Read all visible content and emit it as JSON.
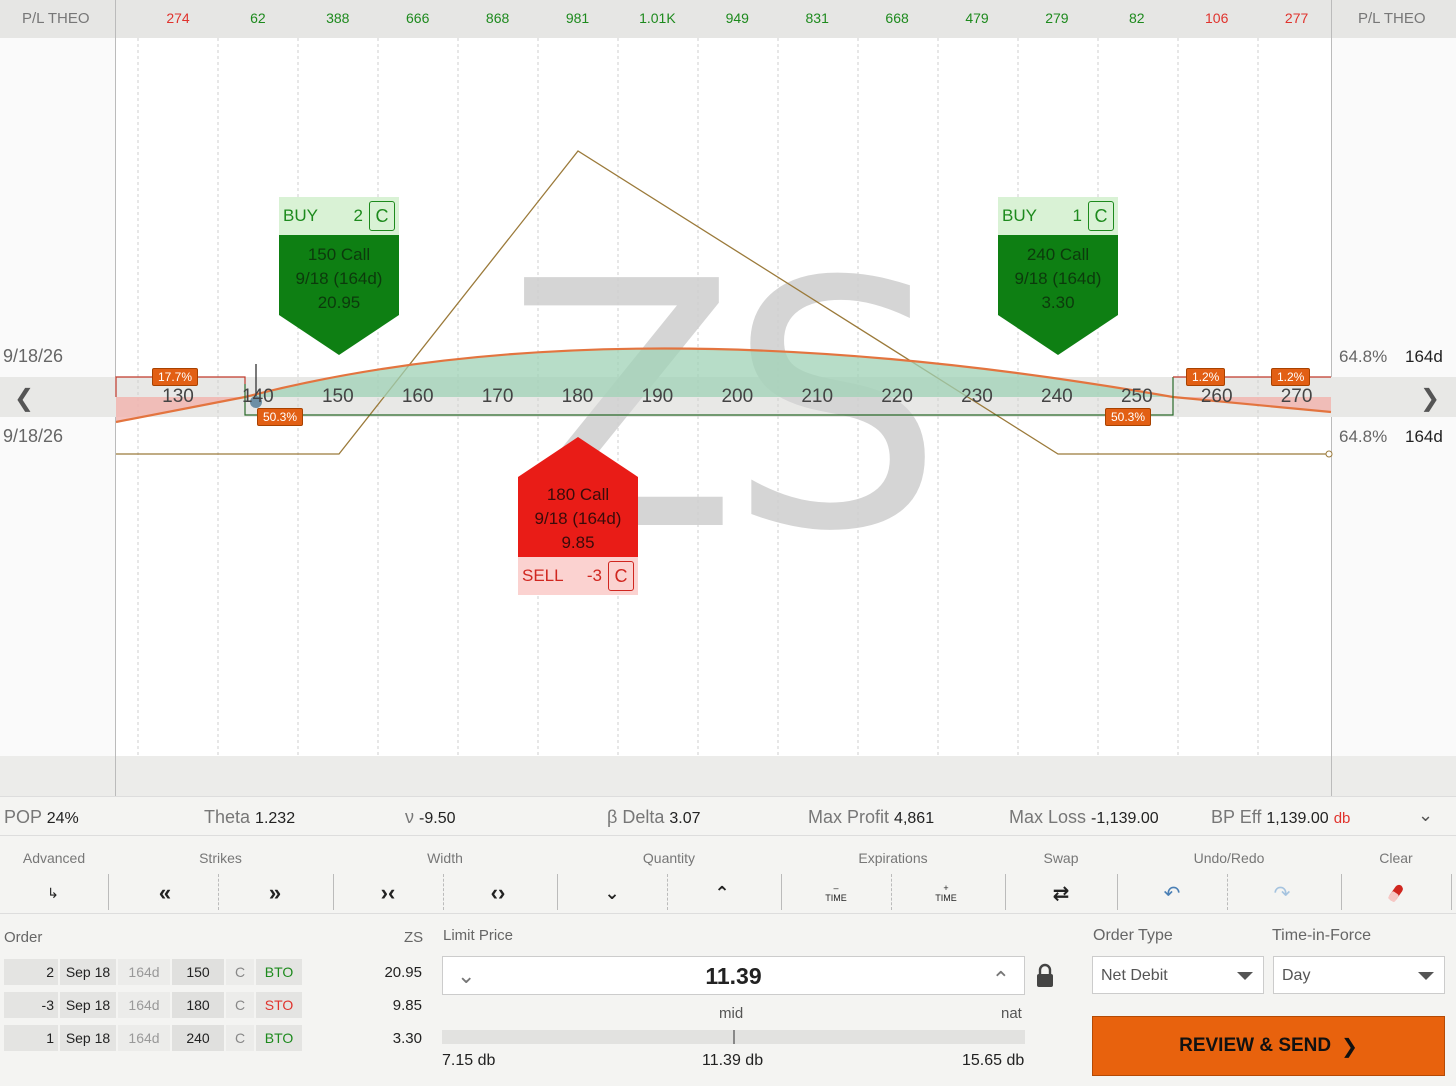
{
  "pl": {
    "label": "P/L THEO",
    "values": [
      {
        "text": "274",
        "sign": "neg"
      },
      {
        "text": "62",
        "sign": "pos"
      },
      {
        "text": "388",
        "sign": "pos"
      },
      {
        "text": "666",
        "sign": "pos"
      },
      {
        "text": "868",
        "sign": "pos"
      },
      {
        "text": "981",
        "sign": "pos"
      },
      {
        "text": "1.01K",
        "sign": "pos"
      },
      {
        "text": "949",
        "sign": "pos"
      },
      {
        "text": "831",
        "sign": "pos"
      },
      {
        "text": "668",
        "sign": "pos"
      },
      {
        "text": "479",
        "sign": "pos"
      },
      {
        "text": "279",
        "sign": "pos"
      },
      {
        "text": "82",
        "sign": "pos"
      },
      {
        "text": "106",
        "sign": "neg"
      },
      {
        "text": "277",
        "sign": "neg"
      }
    ]
  },
  "strikes": [
    "130",
    "140",
    "150",
    "160",
    "170",
    "180",
    "190",
    "200",
    "210",
    "220",
    "230",
    "240",
    "250",
    "260",
    "270"
  ],
  "watermark": "ZS",
  "side": {
    "date_top": "9/18/26",
    "date_bottom": "9/18/26",
    "pct_top": "64.8%",
    "pct_bottom": "64.8%",
    "days_top": "164d",
    "days_bottom": "164d"
  },
  "tags": {
    "left_top": "17.7%",
    "left_bottom": "50.3%",
    "right_bottom": "50.3%",
    "right_top_1": "1.2%",
    "right_top_2": "1.2%"
  },
  "legs": {
    "buy150": {
      "action": "BUY",
      "qty": "2",
      "type": "C",
      "line1": "150 Call",
      "line2": "9/18 (164d)",
      "line3": "20.95"
    },
    "buy240": {
      "action": "BUY",
      "qty": "1",
      "type": "C",
      "line1": "240 Call",
      "line2": "9/18 (164d)",
      "line3": "3.30"
    },
    "sell180": {
      "action": "SELL",
      "qty": "-3",
      "type": "C",
      "line1": "180 Call",
      "line2": "9/18 (164d)",
      "line3": "9.85"
    }
  },
  "stats": {
    "pop_label": "POP",
    "pop": "24%",
    "theta_label": "Theta",
    "theta": "1.232",
    "vega_label": "ν",
    "vega": "-9.50",
    "delta_label": "β Delta",
    "delta": "3.07",
    "maxprofit_label": "Max Profit",
    "maxprofit": "4,861",
    "maxloss_label": "Max Loss",
    "maxloss": "-1,139.00",
    "bpeff_label": "BP Eff",
    "bpeff": "1,139.00",
    "bpeff_unit": "db"
  },
  "toolbar": {
    "advanced": "Advanced",
    "strikes": "Strikes",
    "width": "Width",
    "quantity": "Quantity",
    "expirations": "Expirations",
    "swap": "Swap",
    "undoredo": "Undo/Redo",
    "clear": "Clear",
    "time": "TIME"
  },
  "order": {
    "label": "Order",
    "symbol": "ZS",
    "rows": [
      {
        "qty": "2",
        "exp": "Sep 18",
        "dte": "164d",
        "strike": "150",
        "type": "C",
        "action": "BTO",
        "price": "20.95"
      },
      {
        "qty": "-3",
        "exp": "Sep 18",
        "dte": "164d",
        "strike": "180",
        "type": "C",
        "action": "STO",
        "price": "9.85"
      },
      {
        "qty": "1",
        "exp": "Sep 18",
        "dte": "164d",
        "strike": "240",
        "type": "C",
        "action": "BTO",
        "price": "3.30"
      }
    ]
  },
  "limit": {
    "label": "Limit Price",
    "value": "11.39",
    "mid_label": "mid",
    "nat_label": "nat",
    "low": "7.15 db",
    "mid": "11.39 db",
    "high": "15.65 db"
  },
  "order_type": {
    "label": "Order Type",
    "value": "Net Debit"
  },
  "tif": {
    "label": "Time-in-Force",
    "value": "Day"
  },
  "send": {
    "label": "REVIEW & SEND"
  },
  "colors": {
    "accent": "#e8620d",
    "buy": "#0e7f13",
    "sell": "#e91c17",
    "pos": "#1d8a1d",
    "neg": "#e0332d"
  }
}
